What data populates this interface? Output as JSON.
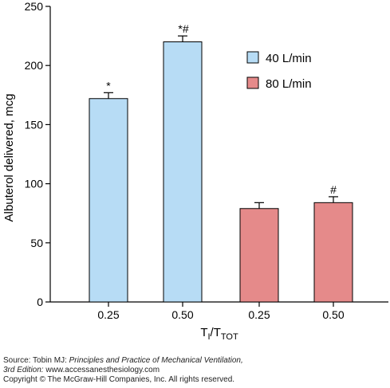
{
  "chart_data": {
    "type": "bar",
    "categories": [
      "0.25",
      "0.50",
      "0.25",
      "0.50"
    ],
    "values": [
      172,
      220,
      79,
      84
    ],
    "errors": [
      5,
      5,
      5,
      5
    ],
    "bar_series": [
      0,
      0,
      1,
      1
    ],
    "annotations": [
      "*",
      "*#",
      "",
      "#"
    ],
    "series": [
      {
        "name": "40 L/min",
        "color": "#b7dcf5"
      },
      {
        "name": "80 L/min",
        "color": "#e58a8a"
      }
    ],
    "xlabel_main": "T",
    "xlabel_sub1": "I",
    "xlabel_mid": "/T",
    "xlabel_sub2": "TOT",
    "ylabel": "Albuterol delivered, mcg",
    "ylim": [
      0,
      250
    ],
    "yticks": [
      0,
      50,
      100,
      150,
      200,
      250
    ],
    "legend_position": "top-right",
    "grid": false
  },
  "source": {
    "line1_prefix": "Source: Tobin MJ: ",
    "line1_title": "Principles and Practice of Mechanical Ventilation,",
    "line2_edition": "3rd Edition:",
    "line2_url": " www.accessanesthesiology.com",
    "line3": "Copyright © The McGraw-Hill Companies, Inc. All rights reserved."
  }
}
